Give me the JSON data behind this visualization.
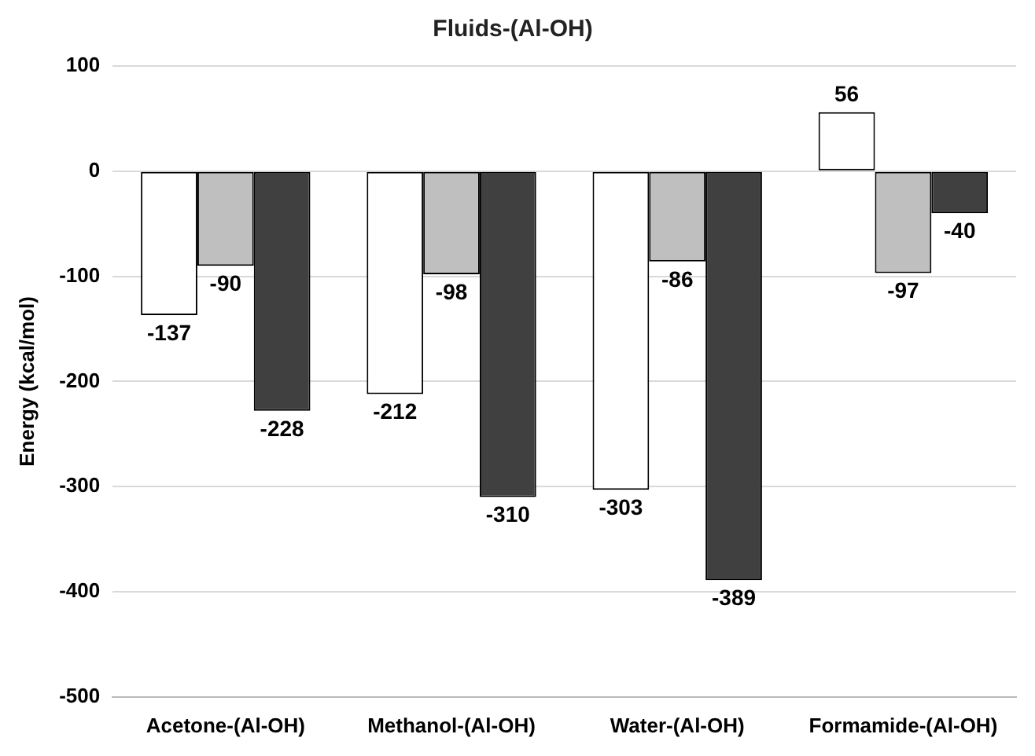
{
  "chart_data": {
    "type": "bar",
    "title": "Fluids-(Al-OH)",
    "ylabel": "Energy (kcal/mol)",
    "categories": [
      "Acetone-(Al-OH)",
      "Methanol-(Al-OH)",
      "Water-(Al-OH)",
      "Formamide-(Al-OH)"
    ],
    "series": [
      {
        "color": "#ffffff",
        "values": [
          -137,
          -212,
          -303,
          56
        ]
      },
      {
        "color": "#bfbfbf",
        "values": [
          -90,
          -98,
          -86,
          -97
        ]
      },
      {
        "color": "#404040",
        "values": [
          -228,
          -310,
          -389,
          -40
        ]
      }
    ],
    "ylim": [
      -500,
      100
    ],
    "yticks": [
      -500,
      -400,
      -300,
      -200,
      -100,
      0,
      100
    ],
    "grid": "y",
    "legend": false,
    "data_labels": true
  }
}
